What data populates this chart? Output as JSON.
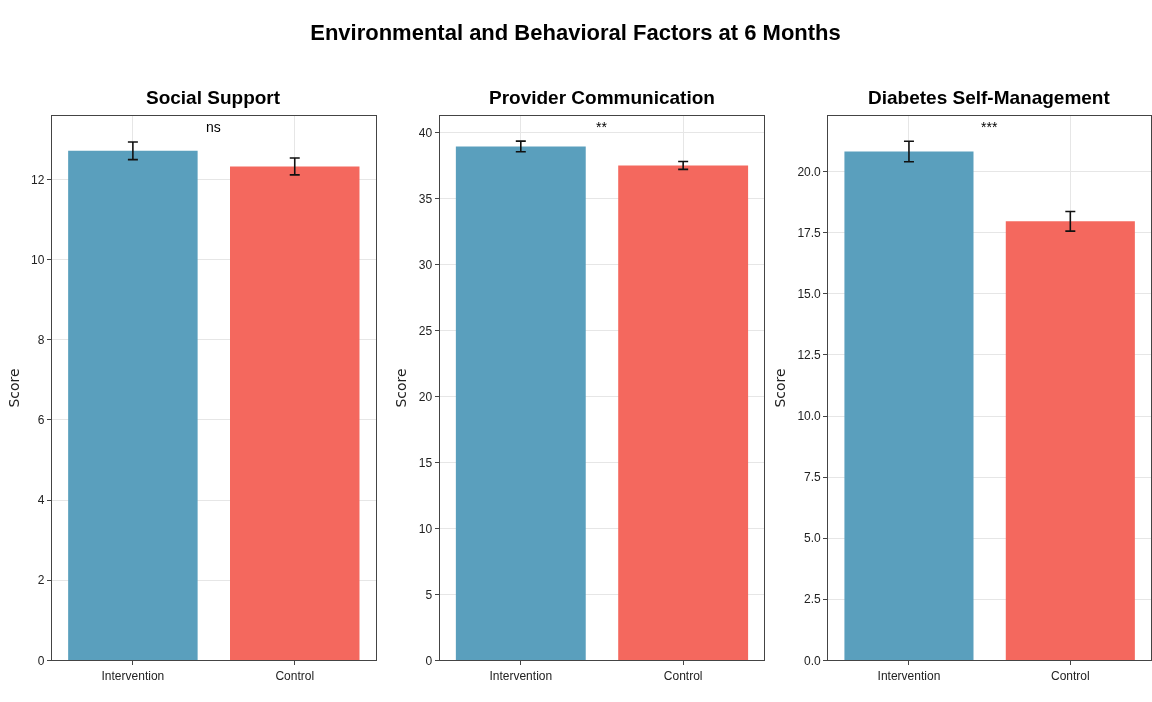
{
  "chart_data": [
    {
      "type": "other",
      "title": "Environmental and Behavioral Factors at 6 Months"
    },
    {
      "type": "bar",
      "title": "Social Support",
      "ylabel": "Score",
      "categories": [
        "Intervention",
        "Control"
      ],
      "values": [
        12.72,
        12.33
      ],
      "errors": [
        0.22,
        0.21
      ],
      "colors": [
        "#5a9fbd",
        "#f4685e"
      ],
      "ylim": [
        0,
        13.6
      ],
      "yticks": [
        0,
        2,
        4,
        6,
        8,
        10,
        12
      ],
      "grid": true,
      "annotations": [
        "ns"
      ]
    },
    {
      "type": "bar",
      "title": "Provider Communication",
      "ylabel": "Score",
      "categories": [
        "Intervention",
        "Control"
      ],
      "values": [
        38.96,
        37.52
      ],
      "errors": [
        0.4,
        0.3
      ],
      "colors": [
        "#5a9fbd",
        "#f4685e"
      ],
      "ylim": [
        0,
        41.3
      ],
      "yticks": [
        0,
        5,
        10,
        15,
        20,
        25,
        30,
        35,
        40
      ],
      "grid": true,
      "annotations": [
        "**"
      ]
    },
    {
      "type": "bar",
      "title": "Diabetes Self-Management",
      "ylabel": "Score",
      "categories": [
        "Intervention",
        "Control"
      ],
      "values": [
        20.83,
        17.97
      ],
      "errors": [
        0.42,
        0.4
      ],
      "colors": [
        "#5a9fbd",
        "#f4685e"
      ],
      "ylim": [
        0,
        22.3
      ],
      "yticks": [
        {
          "value": 0,
          "label": "0.0"
        },
        2.5,
        {
          "value": 5,
          "label": "5.0"
        },
        7.5,
        {
          "value": 10,
          "label": "10.0"
        },
        12.5,
        {
          "value": 15,
          "label": "15.0"
        },
        17.5,
        {
          "value": 20,
          "label": "20.0"
        }
      ],
      "grid": true,
      "annotations": [
        "***"
      ]
    }
  ]
}
